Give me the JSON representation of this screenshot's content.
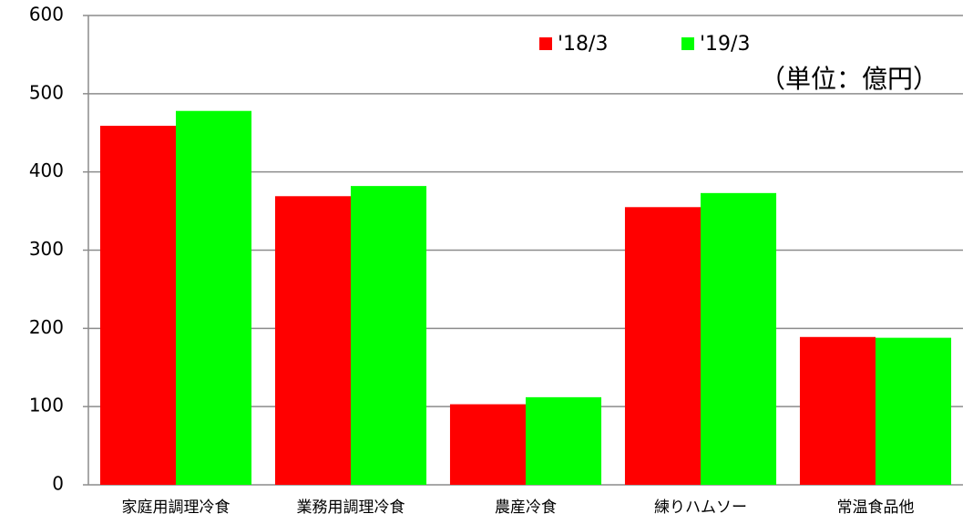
{
  "chart_data": {
    "type": "bar",
    "annotation": "（単位：億円）",
    "categories": [
      "家庭用調理冷食",
      "業務用調理冷食",
      "農産冷食",
      "練りハムソー",
      "常温食品他"
    ],
    "series": [
      {
        "name": "'18/3",
        "color": "#ff0000",
        "values": [
          459,
          369,
          103,
          355,
          189
        ]
      },
      {
        "name": "'19/3",
        "color": "#00ff00",
        "values": [
          478,
          382,
          112,
          373,
          188
        ]
      }
    ],
    "ylim": [
      0,
      600
    ],
    "yticks": [
      0,
      100,
      200,
      300,
      400,
      500,
      600
    ],
    "grid": true
  }
}
